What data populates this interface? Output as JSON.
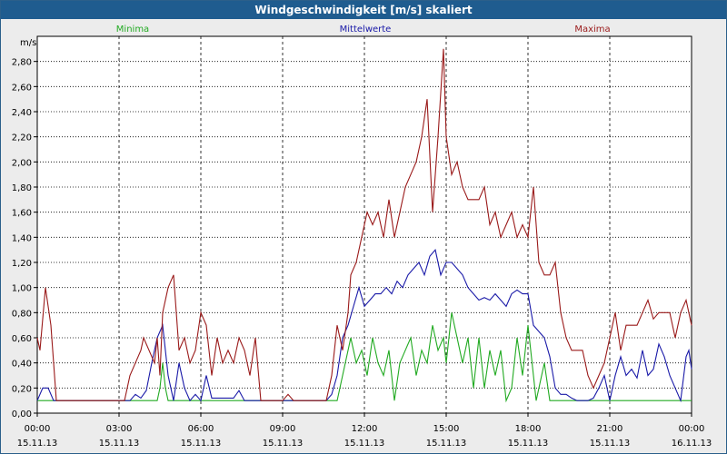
{
  "chart_data": {
    "type": "line",
    "title": "Windgeschwindigkeit [m/s] skaliert",
    "ylabel": "m/s",
    "ylim": [
      0,
      3.0
    ],
    "yticks": [
      "0,00",
      "0,20",
      "0,40",
      "0,60",
      "0,80",
      "1,00",
      "1,20",
      "1,40",
      "1,60",
      "1,80",
      "2,00",
      "2,20",
      "2,40",
      "2,60",
      "2,80"
    ],
    "xlim": [
      0,
      24
    ],
    "xticks": [
      {
        "time": "00:00",
        "date": "15.11.13"
      },
      {
        "time": "03:00",
        "date": "15.11.13"
      },
      {
        "time": "06:00",
        "date": "15.11.13"
      },
      {
        "time": "09:00",
        "date": "15.11.13"
      },
      {
        "time": "12:00",
        "date": "15.11.13"
      },
      {
        "time": "15:00",
        "date": "15.11.13"
      },
      {
        "time": "18:00",
        "date": "15.11.13"
      },
      {
        "time": "21:00",
        "date": "15.11.13"
      },
      {
        "time": "00:00",
        "date": "16.11.13"
      }
    ],
    "grid": true,
    "series": [
      {
        "name": "Minima",
        "color": "#22aa22",
        "points": [
          [
            0,
            0.1
          ],
          [
            4.4,
            0.1
          ],
          [
            4.5,
            0.2
          ],
          [
            4.6,
            0.4
          ],
          [
            4.7,
            0.2
          ],
          [
            4.8,
            0.1
          ],
          [
            11.0,
            0.1
          ],
          [
            11.2,
            0.3
          ],
          [
            11.5,
            0.6
          ],
          [
            11.7,
            0.4
          ],
          [
            11.9,
            0.5
          ],
          [
            12.1,
            0.3
          ],
          [
            12.3,
            0.6
          ],
          [
            12.5,
            0.4
          ],
          [
            12.7,
            0.3
          ],
          [
            12.9,
            0.5
          ],
          [
            13.1,
            0.1
          ],
          [
            13.3,
            0.4
          ],
          [
            13.5,
            0.5
          ],
          [
            13.7,
            0.6
          ],
          [
            13.9,
            0.3
          ],
          [
            14.1,
            0.5
          ],
          [
            14.3,
            0.4
          ],
          [
            14.5,
            0.7
          ],
          [
            14.7,
            0.5
          ],
          [
            14.9,
            0.6
          ],
          [
            15.0,
            0.4
          ],
          [
            15.2,
            0.8
          ],
          [
            15.4,
            0.6
          ],
          [
            15.6,
            0.4
          ],
          [
            15.8,
            0.6
          ],
          [
            16.0,
            0.2
          ],
          [
            16.2,
            0.6
          ],
          [
            16.4,
            0.2
          ],
          [
            16.6,
            0.5
          ],
          [
            16.8,
            0.3
          ],
          [
            17.0,
            0.5
          ],
          [
            17.2,
            0.1
          ],
          [
            17.4,
            0.2
          ],
          [
            17.6,
            0.6
          ],
          [
            17.8,
            0.3
          ],
          [
            18.0,
            0.7
          ],
          [
            18.1,
            0.5
          ],
          [
            18.3,
            0.1
          ],
          [
            18.6,
            0.4
          ],
          [
            18.8,
            0.1
          ],
          [
            24,
            0.1
          ]
        ]
      },
      {
        "name": "Mittelwerte",
        "color": "#1a1aa8",
        "points": [
          [
            0,
            0.1
          ],
          [
            0.2,
            0.2
          ],
          [
            0.4,
            0.2
          ],
          [
            0.6,
            0.1
          ],
          [
            3.4,
            0.1
          ],
          [
            3.6,
            0.15
          ],
          [
            3.8,
            0.12
          ],
          [
            4.0,
            0.18
          ],
          [
            4.2,
            0.4
          ],
          [
            4.4,
            0.6
          ],
          [
            4.6,
            0.7
          ],
          [
            4.8,
            0.3
          ],
          [
            5.0,
            0.1
          ],
          [
            5.2,
            0.4
          ],
          [
            5.4,
            0.2
          ],
          [
            5.6,
            0.1
          ],
          [
            5.8,
            0.15
          ],
          [
            6.0,
            0.1
          ],
          [
            6.2,
            0.3
          ],
          [
            6.4,
            0.12
          ],
          [
            7.2,
            0.12
          ],
          [
            7.4,
            0.18
          ],
          [
            7.6,
            0.1
          ],
          [
            10.6,
            0.1
          ],
          [
            10.8,
            0.15
          ],
          [
            11.0,
            0.3
          ],
          [
            11.2,
            0.6
          ],
          [
            11.4,
            0.7
          ],
          [
            11.6,
            0.85
          ],
          [
            11.8,
            1.0
          ],
          [
            12.0,
            0.85
          ],
          [
            12.2,
            0.9
          ],
          [
            12.4,
            0.95
          ],
          [
            12.6,
            0.95
          ],
          [
            12.8,
            1.0
          ],
          [
            13.0,
            0.95
          ],
          [
            13.2,
            1.05
          ],
          [
            13.4,
            1.0
          ],
          [
            13.6,
            1.1
          ],
          [
            13.8,
            1.15
          ],
          [
            14.0,
            1.2
          ],
          [
            14.2,
            1.1
          ],
          [
            14.4,
            1.25
          ],
          [
            14.6,
            1.3
          ],
          [
            14.8,
            1.1
          ],
          [
            15.0,
            1.2
          ],
          [
            15.2,
            1.2
          ],
          [
            15.4,
            1.15
          ],
          [
            15.6,
            1.1
          ],
          [
            15.8,
            1.0
          ],
          [
            16.0,
            0.95
          ],
          [
            16.2,
            0.9
          ],
          [
            16.4,
            0.92
          ],
          [
            16.6,
            0.9
          ],
          [
            16.8,
            0.95
          ],
          [
            17.0,
            0.9
          ],
          [
            17.2,
            0.85
          ],
          [
            17.4,
            0.95
          ],
          [
            17.6,
            0.98
          ],
          [
            17.8,
            0.95
          ],
          [
            18.0,
            0.95
          ],
          [
            18.2,
            0.7
          ],
          [
            18.4,
            0.65
          ],
          [
            18.6,
            0.6
          ],
          [
            18.8,
            0.45
          ],
          [
            19.0,
            0.2
          ],
          [
            19.2,
            0.15
          ],
          [
            19.4,
            0.15
          ],
          [
            19.6,
            0.12
          ],
          [
            19.8,
            0.1
          ],
          [
            20.2,
            0.1
          ],
          [
            20.4,
            0.12
          ],
          [
            20.6,
            0.2
          ],
          [
            20.8,
            0.3
          ],
          [
            21.0,
            0.1
          ],
          [
            21.2,
            0.3
          ],
          [
            21.4,
            0.45
          ],
          [
            21.6,
            0.3
          ],
          [
            21.8,
            0.35
          ],
          [
            22.0,
            0.28
          ],
          [
            22.2,
            0.5
          ],
          [
            22.4,
            0.3
          ],
          [
            22.6,
            0.35
          ],
          [
            22.8,
            0.55
          ],
          [
            23.0,
            0.45
          ],
          [
            23.2,
            0.3
          ],
          [
            23.4,
            0.2
          ],
          [
            23.6,
            0.1
          ],
          [
            23.8,
            0.45
          ],
          [
            23.9,
            0.5
          ],
          [
            24.0,
            0.35
          ]
        ]
      },
      {
        "name": "Maxima",
        "color": "#9a1a1a",
        "points": [
          [
            0,
            0.6
          ],
          [
            0.1,
            0.5
          ],
          [
            0.3,
            1.0
          ],
          [
            0.5,
            0.7
          ],
          [
            0.7,
            0.1
          ],
          [
            3.2,
            0.1
          ],
          [
            3.4,
            0.3
          ],
          [
            3.6,
            0.4
          ],
          [
            3.8,
            0.5
          ],
          [
            3.9,
            0.6
          ],
          [
            4.1,
            0.5
          ],
          [
            4.3,
            0.4
          ],
          [
            4.4,
            0.6
          ],
          [
            4.5,
            0.3
          ],
          [
            4.6,
            0.8
          ],
          [
            4.8,
            1.0
          ],
          [
            5.0,
            1.1
          ],
          [
            5.2,
            0.5
          ],
          [
            5.4,
            0.6
          ],
          [
            5.6,
            0.4
          ],
          [
            5.8,
            0.5
          ],
          [
            6.0,
            0.8
          ],
          [
            6.2,
            0.7
          ],
          [
            6.4,
            0.3
          ],
          [
            6.6,
            0.6
          ],
          [
            6.8,
            0.4
          ],
          [
            7.0,
            0.5
          ],
          [
            7.2,
            0.4
          ],
          [
            7.4,
            0.6
          ],
          [
            7.6,
            0.5
          ],
          [
            7.8,
            0.3
          ],
          [
            8.0,
            0.6
          ],
          [
            8.2,
            0.1
          ],
          [
            9.0,
            0.1
          ],
          [
            9.2,
            0.15
          ],
          [
            9.4,
            0.1
          ],
          [
            10.6,
            0.1
          ],
          [
            10.8,
            0.3
          ],
          [
            11.0,
            0.7
          ],
          [
            11.2,
            0.5
          ],
          [
            11.4,
            0.8
          ],
          [
            11.5,
            1.1
          ],
          [
            11.7,
            1.2
          ],
          [
            11.9,
            1.4
          ],
          [
            12.1,
            1.6
          ],
          [
            12.3,
            1.5
          ],
          [
            12.5,
            1.6
          ],
          [
            12.7,
            1.4
          ],
          [
            12.9,
            1.7
          ],
          [
            13.1,
            1.4
          ],
          [
            13.3,
            1.6
          ],
          [
            13.5,
            1.8
          ],
          [
            13.7,
            1.9
          ],
          [
            13.9,
            2.0
          ],
          [
            14.1,
            2.2
          ],
          [
            14.3,
            2.5
          ],
          [
            14.5,
            1.6
          ],
          [
            14.7,
            2.2
          ],
          [
            14.9,
            2.9
          ],
          [
            15.0,
            2.2
          ],
          [
            15.2,
            1.9
          ],
          [
            15.4,
            2.0
          ],
          [
            15.6,
            1.8
          ],
          [
            15.8,
            1.7
          ],
          [
            16.2,
            1.7
          ],
          [
            16.4,
            1.8
          ],
          [
            16.6,
            1.5
          ],
          [
            16.8,
            1.6
          ],
          [
            17.0,
            1.4
          ],
          [
            17.2,
            1.5
          ],
          [
            17.4,
            1.6
          ],
          [
            17.6,
            1.4
          ],
          [
            17.8,
            1.5
          ],
          [
            18.0,
            1.4
          ],
          [
            18.2,
            1.8
          ],
          [
            18.4,
            1.2
          ],
          [
            18.6,
            1.1
          ],
          [
            18.8,
            1.1
          ],
          [
            19.0,
            1.2
          ],
          [
            19.2,
            0.8
          ],
          [
            19.4,
            0.6
          ],
          [
            19.6,
            0.5
          ],
          [
            20.0,
            0.5
          ],
          [
            20.2,
            0.3
          ],
          [
            20.4,
            0.2
          ],
          [
            20.6,
            0.3
          ],
          [
            20.8,
            0.4
          ],
          [
            21.0,
            0.6
          ],
          [
            21.2,
            0.8
          ],
          [
            21.4,
            0.5
          ],
          [
            21.6,
            0.7
          ],
          [
            22.0,
            0.7
          ],
          [
            22.2,
            0.8
          ],
          [
            22.4,
            0.9
          ],
          [
            22.6,
            0.75
          ],
          [
            22.8,
            0.8
          ],
          [
            23.2,
            0.8
          ],
          [
            23.4,
            0.6
          ],
          [
            23.6,
            0.8
          ],
          [
            23.8,
            0.9
          ],
          [
            24.0,
            0.7
          ]
        ]
      }
    ]
  }
}
